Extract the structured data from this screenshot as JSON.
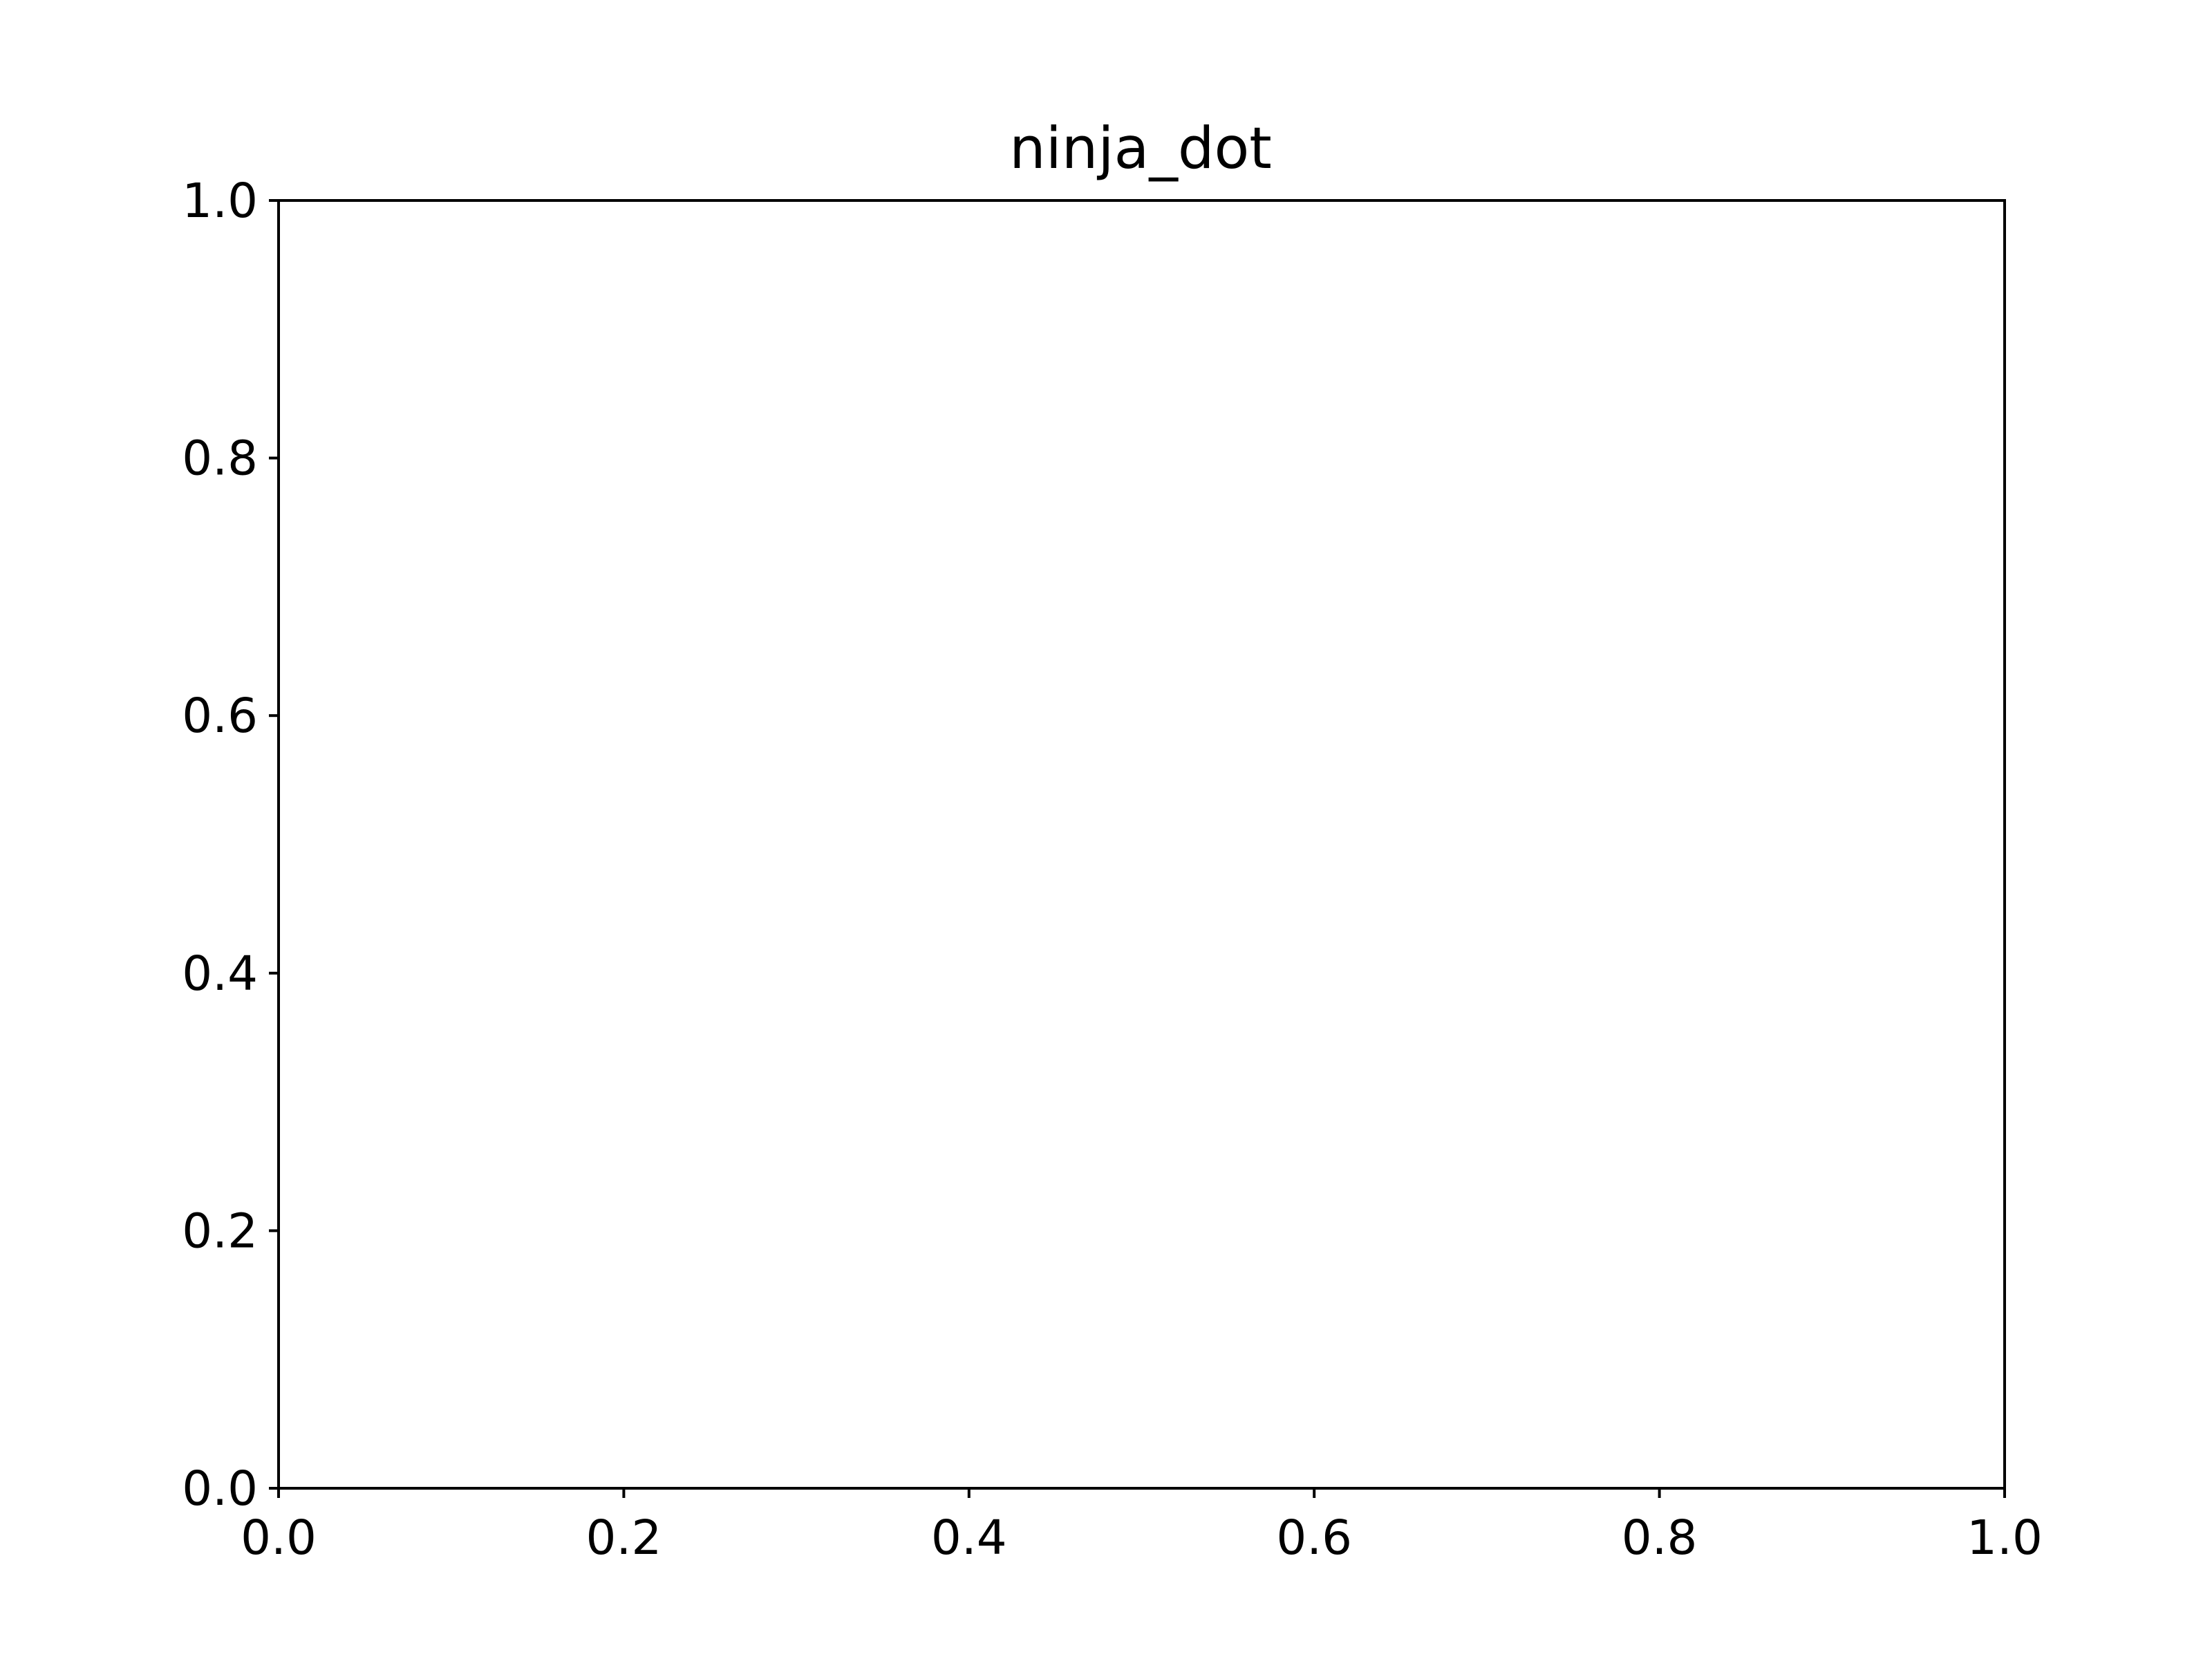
{
  "chart_data": {
    "type": "scatter",
    "title": "ninja_dot",
    "xlabel": "",
    "ylabel": "",
    "xlim": [
      0.0,
      1.0
    ],
    "ylim": [
      0.0,
      1.0
    ],
    "x_ticks": [
      0.0,
      0.2,
      0.4,
      0.6,
      0.8,
      1.0
    ],
    "x_tick_labels": [
      "0.0",
      "0.2",
      "0.4",
      "0.6",
      "0.8",
      "1.0"
    ],
    "y_ticks": [
      0.0,
      0.2,
      0.4,
      0.6,
      0.8,
      1.0
    ],
    "y_tick_labels": [
      "0.0",
      "0.2",
      "0.4",
      "0.6",
      "0.8",
      "1.0"
    ],
    "series": [],
    "grid": false,
    "legend": "none",
    "colors": {
      "axes": "#000000",
      "background": "#ffffff"
    }
  }
}
